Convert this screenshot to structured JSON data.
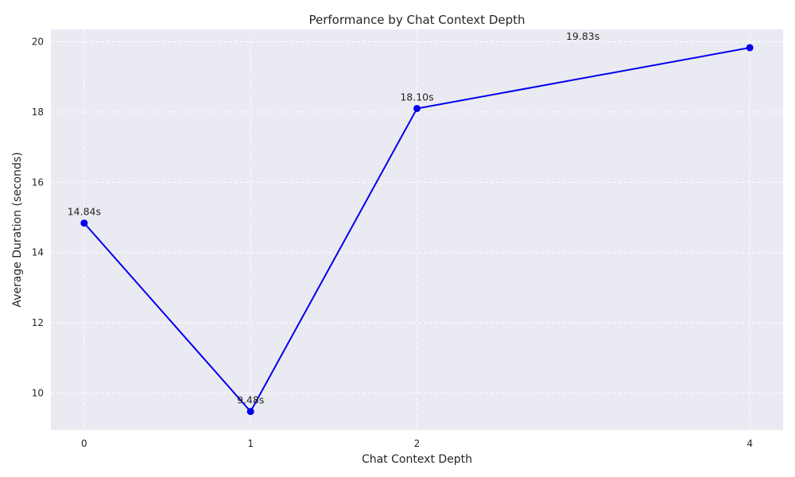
{
  "chart_data": {
    "type": "line",
    "title": "Performance by Chat Context Depth",
    "xlabel": "Chat Context Depth",
    "ylabel": "Average Duration (seconds)",
    "x": [
      0,
      1,
      2,
      4
    ],
    "xticks": [
      "0",
      "1",
      "2",
      "4"
    ],
    "xlim": [
      -0.2,
      4.2
    ],
    "ylim": [
      8.95,
      20.35
    ],
    "yticks": [
      10,
      12,
      14,
      16,
      18,
      20
    ],
    "series": [
      {
        "values": [
          14.84,
          9.48,
          18.1,
          19.83
        ],
        "labels": [
          "14.84s",
          "9.48s",
          "18.10s",
          "19.83s"
        ]
      }
    ],
    "grid": true,
    "colors": {
      "line": "#0000ee",
      "background": "#eaeaf2",
      "grid": "#ffffff"
    }
  }
}
